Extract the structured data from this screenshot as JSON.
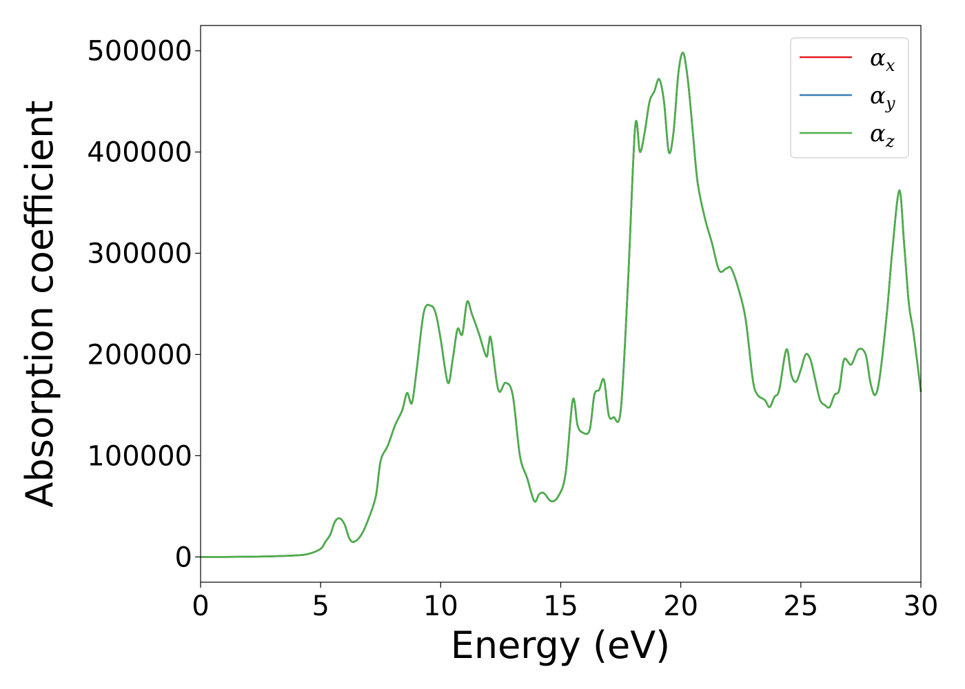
{
  "chart_data": {
    "type": "line",
    "title": "",
    "xlabel": "Energy (eV)",
    "ylabel": "Absorption coefficient",
    "xlim": [
      0,
      30
    ],
    "ylim": [
      -25000,
      525000
    ],
    "xticks": [
      0,
      5,
      10,
      15,
      20,
      25,
      30
    ],
    "yticks": [
      0,
      100000,
      200000,
      300000,
      400000,
      500000
    ],
    "xtick_labels": [
      "0",
      "5",
      "10",
      "15",
      "20",
      "25",
      "30"
    ],
    "ytick_labels": [
      "0",
      "100000",
      "200000",
      "300000",
      "400000",
      "500000"
    ],
    "grid": false,
    "legend_position": "top-right",
    "legend": [
      {
        "symbol": "α",
        "subscript": "x",
        "color": "#e41a1c"
      },
      {
        "symbol": "α",
        "subscript": "y",
        "color": "#377eb8"
      },
      {
        "symbol": "α",
        "subscript": "z",
        "color": "#4daf4a"
      }
    ],
    "x": [
      0,
      1,
      2,
      3,
      4,
      4.5,
      5,
      5.2,
      5.4,
      5.6,
      5.8,
      6.0,
      6.2,
      6.4,
      6.7,
      7.0,
      7.3,
      7.5,
      7.8,
      8.1,
      8.4,
      8.6,
      8.8,
      9.0,
      9.3,
      9.6,
      9.8,
      10.0,
      10.3,
      10.5,
      10.7,
      10.9,
      11.1,
      11.3,
      11.6,
      11.9,
      12.0,
      12.1,
      12.4,
      12.7,
      13.0,
      13.3,
      13.6,
      13.9,
      14.1,
      14.3,
      14.6,
      14.9,
      15.2,
      15.5,
      15.7,
      15.9,
      16.2,
      16.4,
      16.6,
      16.8,
      17.0,
      17.2,
      17.5,
      17.8,
      18.1,
      18.3,
      18.5,
      18.7,
      18.9,
      19.1,
      19.3,
      19.5,
      19.7,
      19.9,
      20.1,
      20.3,
      20.5,
      20.7,
      21.0,
      21.3,
      21.6,
      21.9,
      22.1,
      22.4,
      22.7,
      23.0,
      23.2,
      23.5,
      23.7,
      23.9,
      24.1,
      24.4,
      24.6,
      24.8,
      25.0,
      25.2,
      25.4,
      25.6,
      25.8,
      26.0,
      26.2,
      26.4,
      26.6,
      26.8,
      27.1,
      27.4,
      27.7,
      27.9,
      28.1,
      28.3,
      28.6,
      28.8,
      29.1,
      29.3,
      29.5,
      29.7,
      30.0
    ],
    "series": [
      {
        "name": "αx",
        "values": [
          0,
          0,
          200,
          600,
          1500,
          3000,
          8000,
          15000,
          22000,
          35000,
          38000,
          32000,
          18000,
          15000,
          22000,
          38000,
          60000,
          95000,
          110000,
          130000,
          145000,
          162000,
          152000,
          185000,
          242000,
          248000,
          240000,
          215000,
          172000,
          195000,
          225000,
          220000,
          252000,
          240000,
          220000,
          198000,
          210000,
          215000,
          165000,
          172000,
          160000,
          100000,
          78000,
          55000,
          62000,
          63000,
          55000,
          60000,
          82000,
          155000,
          130000,
          123000,
          125000,
          160000,
          165000,
          175000,
          140000,
          138000,
          145000,
          270000,
          425000,
          400000,
          420000,
          450000,
          460000,
          472000,
          450000,
          400000,
          420000,
          478000,
          498000,
          470000,
          420000,
          370000,
          335000,
          310000,
          283000,
          285000,
          285000,
          265000,
          235000,
          175000,
          160000,
          155000,
          148000,
          158000,
          165000,
          205000,
          180000,
          173000,
          185000,
          200000,
          195000,
          175000,
          155000,
          150000,
          148000,
          160000,
          165000,
          195000,
          190000,
          205000,
          200000,
          172000,
          160000,
          180000,
          245000,
          300000,
          362000,
          310000,
          250000,
          220000,
          163000
        ]
      },
      {
        "name": "αy",
        "values": [
          0,
          0,
          200,
          600,
          1500,
          3000,
          8000,
          15000,
          22000,
          35000,
          38000,
          32000,
          18000,
          15000,
          22000,
          38000,
          60000,
          95000,
          110000,
          130000,
          145000,
          162000,
          152000,
          185000,
          242000,
          248000,
          240000,
          215000,
          172000,
          195000,
          225000,
          220000,
          252000,
          240000,
          220000,
          198000,
          210000,
          215000,
          165000,
          172000,
          160000,
          100000,
          78000,
          55000,
          62000,
          63000,
          55000,
          60000,
          82000,
          155000,
          130000,
          123000,
          125000,
          160000,
          165000,
          175000,
          140000,
          138000,
          145000,
          270000,
          425000,
          400000,
          420000,
          450000,
          460000,
          472000,
          450000,
          400000,
          420000,
          478000,
          498000,
          470000,
          420000,
          370000,
          335000,
          310000,
          283000,
          285000,
          285000,
          265000,
          235000,
          175000,
          160000,
          155000,
          148000,
          158000,
          165000,
          205000,
          180000,
          173000,
          185000,
          200000,
          195000,
          175000,
          155000,
          150000,
          148000,
          160000,
          165000,
          195000,
          190000,
          205000,
          200000,
          172000,
          160000,
          180000,
          245000,
          300000,
          362000,
          310000,
          250000,
          220000,
          163000
        ]
      },
      {
        "name": "αz",
        "values": [
          0,
          0,
          200,
          600,
          1500,
          3000,
          8000,
          15000,
          22000,
          35000,
          38000,
          32000,
          18000,
          15000,
          22000,
          38000,
          60000,
          95000,
          110000,
          130000,
          145000,
          162000,
          152000,
          185000,
          242000,
          248000,
          240000,
          215000,
          172000,
          195000,
          225000,
          220000,
          252000,
          240000,
          220000,
          198000,
          210000,
          215000,
          165000,
          172000,
          160000,
          100000,
          78000,
          55000,
          62000,
          63000,
          55000,
          60000,
          82000,
          155000,
          130000,
          123000,
          125000,
          160000,
          165000,
          175000,
          140000,
          138000,
          145000,
          270000,
          425000,
          400000,
          420000,
          450000,
          460000,
          472000,
          450000,
          400000,
          420000,
          478000,
          498000,
          470000,
          420000,
          370000,
          335000,
          310000,
          283000,
          285000,
          285000,
          265000,
          235000,
          175000,
          160000,
          155000,
          148000,
          158000,
          165000,
          205000,
          180000,
          173000,
          185000,
          200000,
          195000,
          175000,
          155000,
          150000,
          148000,
          160000,
          165000,
          195000,
          190000,
          205000,
          200000,
          172000,
          160000,
          180000,
          245000,
          300000,
          362000,
          310000,
          250000,
          220000,
          163000
        ]
      }
    ]
  }
}
